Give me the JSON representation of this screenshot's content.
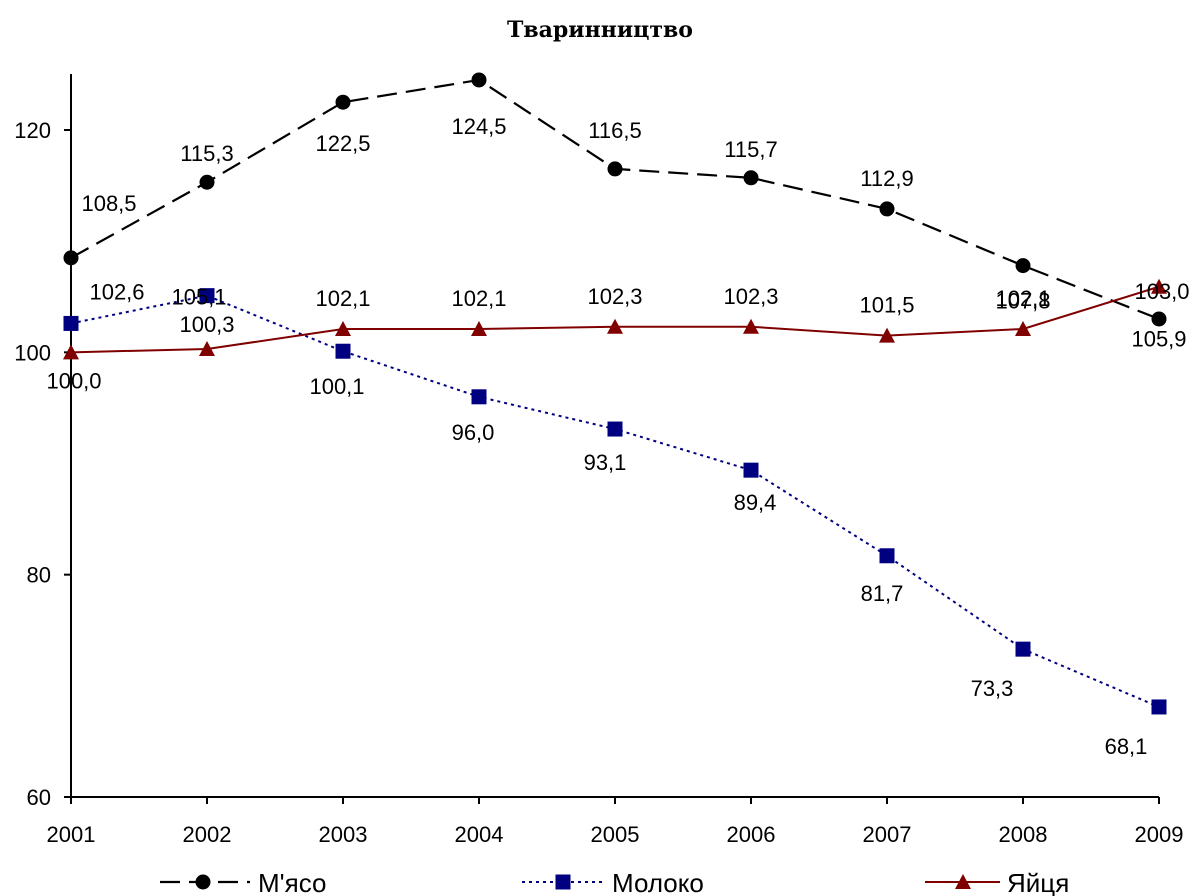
{
  "chart_data": {
    "type": "line",
    "title": "Тваринництво",
    "x": [
      "2001",
      "2002",
      "2003",
      "2004",
      "2005",
      "2006",
      "2007",
      "2008",
      "2009"
    ],
    "y_ticks": [
      "60",
      "80",
      "100",
      "120"
    ],
    "ylim": [
      60,
      125
    ],
    "grid": false,
    "legend_position": "bottom",
    "series": [
      {
        "name": "М'ясо",
        "values": [
          108.5,
          115.3,
          122.5,
          124.5,
          116.5,
          115.7,
          112.9,
          107.8,
          103.0
        ],
        "labels": [
          "108,5",
          "115,3",
          "122,5",
          "124,5",
          "116,5",
          "115,7",
          "112,9",
          "107,8",
          "103,0"
        ],
        "color": "#000000",
        "line_style": "dashed",
        "marker": "circle"
      },
      {
        "name": "Молоко",
        "values": [
          102.6,
          105.1,
          100.1,
          96.0,
          93.1,
          89.4,
          81.7,
          73.3,
          68.1
        ],
        "labels": [
          "102,6",
          "105,1",
          "100,1",
          "96,0",
          "93,1",
          "89,4",
          "81,7",
          "73,3",
          "68,1"
        ],
        "color": "#000080",
        "line_style": "dotted",
        "marker": "square"
      },
      {
        "name": "Яйця",
        "values": [
          100.0,
          100.3,
          102.1,
          102.1,
          102.3,
          102.3,
          101.5,
          102.1,
          105.9
        ],
        "labels": [
          "100,0",
          "100,3",
          "102,1",
          "102,1",
          "102,3",
          "102,3",
          "101,5",
          "102,1",
          "105,9"
        ],
        "color": "#800000",
        "line_style": "solid",
        "marker": "triangle"
      }
    ]
  }
}
